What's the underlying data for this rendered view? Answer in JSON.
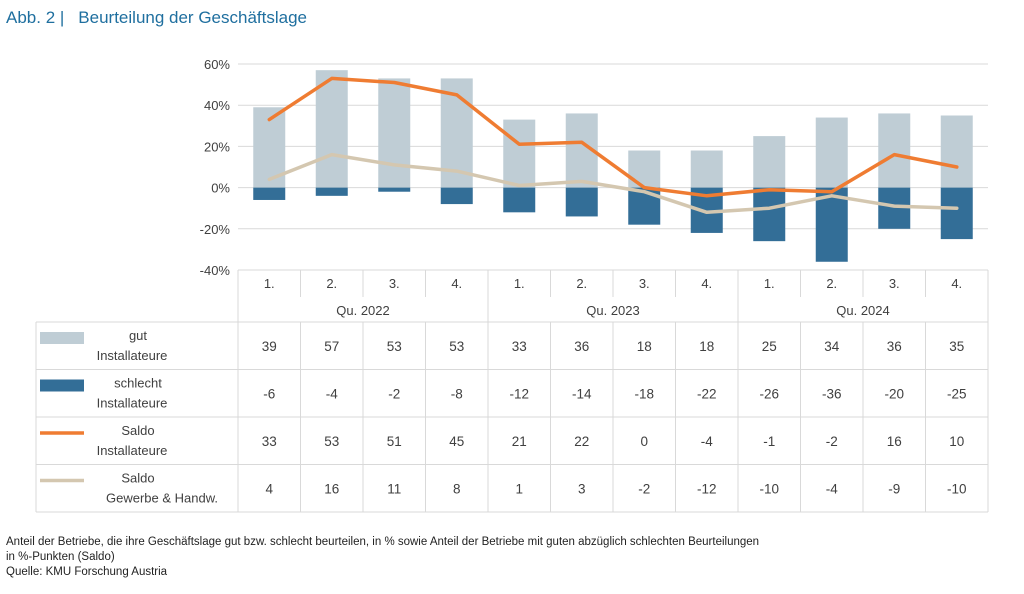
{
  "header": {
    "prefix": "Abb. 2 |",
    "title": "Beurteilung der Geschäftslage"
  },
  "chart_data": {
    "type": "bar",
    "yaxis": {
      "ticks": [
        "60%",
        "40%",
        "20%",
        "0%",
        "-20%",
        "-40%"
      ],
      "ylim": [
        -40,
        60
      ],
      "grid": true
    },
    "categories": [
      "1.",
      "2.",
      "3.",
      "4.",
      "1.",
      "2.",
      "3.",
      "4.",
      "1.",
      "2.",
      "3.",
      "4."
    ],
    "groups": [
      "Qu. 2022",
      "Qu. 2023",
      "Qu. 2024"
    ],
    "series": [
      {
        "name": "gut Installateure",
        "label_lines": [
          "gut",
          "Installateure"
        ],
        "kind": "bar",
        "color": "#bfcdd5",
        "values": [
          39,
          57,
          53,
          53,
          33,
          36,
          18,
          18,
          25,
          34,
          36,
          35
        ]
      },
      {
        "name": "schlecht Installateure",
        "label_lines": [
          "schlecht",
          "Installateure"
        ],
        "kind": "bar",
        "color": "#336e97",
        "values": [
          -6,
          -4,
          -2,
          -8,
          -12,
          -14,
          -18,
          -22,
          -26,
          -36,
          -20,
          -25
        ]
      },
      {
        "name": "Saldo Installateure",
        "label_lines": [
          "Saldo",
          "Installateure"
        ],
        "kind": "line",
        "color": "#ef7c32",
        "values": [
          33,
          53,
          51,
          45,
          21,
          22,
          0,
          -4,
          -1,
          -2,
          16,
          10
        ]
      },
      {
        "name": "Saldo Gewerbe & Handw.",
        "label_lines": [
          "Saldo",
          "Gewerbe & Handw."
        ],
        "kind": "line",
        "color": "#d4c7b0",
        "values": [
          4,
          16,
          11,
          8,
          1,
          3,
          -2,
          -12,
          -10,
          -4,
          -9,
          -10
        ]
      }
    ]
  },
  "footer": {
    "note_line1": "Anteil der Betriebe, die ihre Geschäftslage gut bzw. schlecht beurteilen, in % sowie Anteil der Betriebe mit guten abzüglich schlechten Beurteilungen",
    "note_line2": "in %-Punkten (Saldo)",
    "source": "Quelle: KMU Forschung Austria"
  }
}
